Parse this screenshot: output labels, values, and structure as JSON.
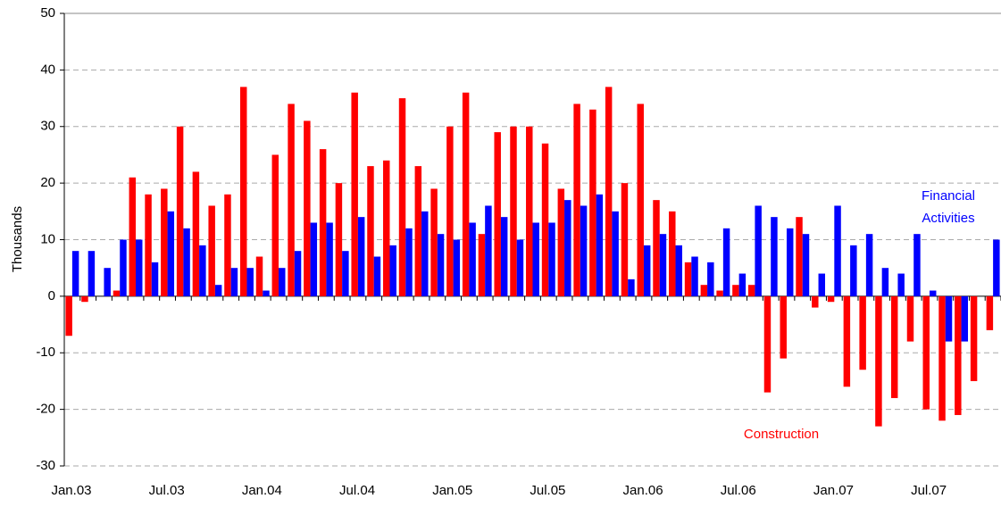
{
  "chart_data": {
    "type": "bar",
    "y_label": "Thousands",
    "categories": [
      "Jan.03",
      null,
      null,
      null,
      null,
      null,
      "Jul.03",
      null,
      null,
      null,
      null,
      null,
      "Jan.04",
      null,
      null,
      null,
      null,
      null,
      "Jul.04",
      null,
      null,
      null,
      null,
      null,
      "Jan.05",
      null,
      null,
      null,
      null,
      null,
      "Jul.05",
      null,
      null,
      null,
      null,
      null,
      "Jan.06",
      null,
      null,
      null,
      null,
      null,
      "Jul.06",
      null,
      null,
      null,
      null,
      null,
      "Jan.07",
      null,
      null,
      null,
      null,
      null,
      "Jul.07",
      null,
      null,
      null,
      null
    ],
    "series": [
      {
        "name": "Construction",
        "color": "#ff0000",
        "values": [
          -7,
          -1,
          0,
          1,
          21,
          18,
          19,
          30,
          22,
          16,
          18,
          37,
          7,
          25,
          34,
          31,
          26,
          20,
          36,
          23,
          24,
          35,
          23,
          19,
          30,
          36,
          11,
          29,
          30,
          30,
          27,
          19,
          34,
          33,
          37,
          20,
          34,
          17,
          15,
          6,
          2,
          1,
          2,
          2,
          -17,
          -11,
          14,
          -2,
          -1,
          -16,
          -13,
          -23,
          -18,
          -8,
          -20,
          -22,
          -21,
          -15,
          -6
        ]
      },
      {
        "name": "Financial Activities",
        "color": "#0000ff",
        "values": [
          8,
          8,
          5,
          10,
          10,
          6,
          15,
          12,
          9,
          2,
          5,
          5,
          1,
          5,
          8,
          13,
          13,
          8,
          14,
          7,
          9,
          12,
          15,
          11,
          10,
          13,
          16,
          14,
          10,
          13,
          13,
          17,
          16,
          18,
          15,
          3,
          9,
          11,
          9,
          7,
          6,
          12,
          4,
          16,
          14,
          12,
          11,
          4,
          16,
          9,
          11,
          5,
          4,
          11,
          1,
          -8,
          -8,
          0,
          10
        ]
      }
    ],
    "ylim": [
      -30,
      50
    ],
    "yticks": [
      -30,
      -20,
      -10,
      0,
      10,
      20,
      30,
      40,
      50
    ],
    "grid": true
  }
}
